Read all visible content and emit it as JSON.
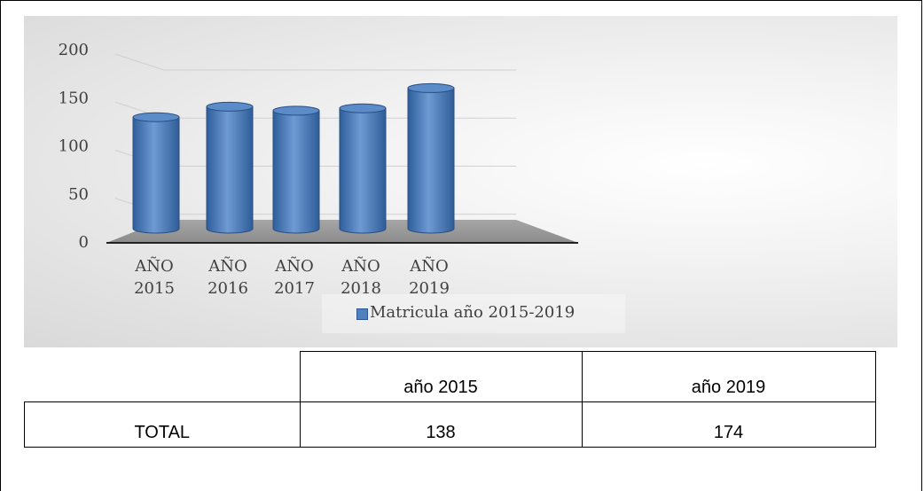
{
  "chart_data": {
    "type": "bar",
    "categories": [
      "AÑO 2015",
      "AÑO 2016",
      "AÑO 2017",
      "AÑO 2018",
      "AÑO 2019"
    ],
    "series": [
      {
        "name": "Matricula año 2015-2019",
        "color": "#4f81bd",
        "values": [
          138,
          151,
          146,
          149,
          174
        ]
      }
    ],
    "ylim": [
      0,
      200
    ],
    "yticks": [
      0,
      50,
      100,
      150,
      200
    ],
    "grid": true,
    "legend": "bottom"
  },
  "table": {
    "header": [
      "año 2015",
      "año 2019"
    ],
    "rows": [
      {
        "label": "TOTAL",
        "values": [
          138,
          174
        ]
      }
    ]
  }
}
